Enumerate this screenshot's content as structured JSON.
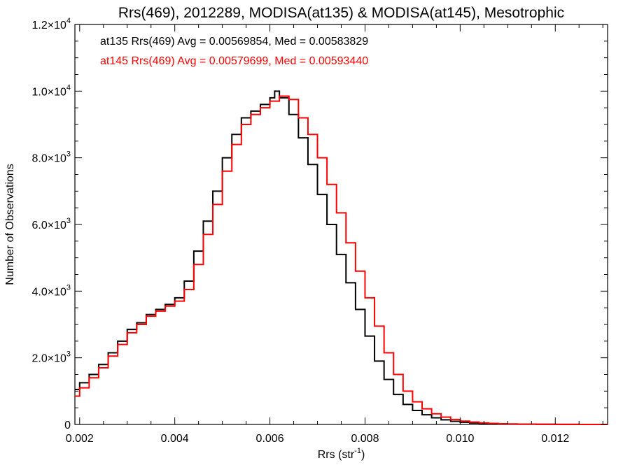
{
  "chart_data": {
    "type": "line",
    "style": "step-histogram",
    "title": "Rrs(469), 2012289, MODISA(at135) & MODISA(at145), Mesotrophic",
    "xlabel": "Rrs (str",
    "xlabel_superscript": "-1",
    "xlabel_suffix": ")",
    "ylabel": "Number of Observations",
    "xlim": [
      0.0019,
      0.0131
    ],
    "ylim": [
      0,
      12000
    ],
    "x_ticks": [
      {
        "value": 0.002,
        "label": "0.002"
      },
      {
        "value": 0.004,
        "label": "0.004"
      },
      {
        "value": 0.006,
        "label": "0.006"
      },
      {
        "value": 0.008,
        "label": "0.008"
      },
      {
        "value": 0.01,
        "label": "0.010"
      },
      {
        "value": 0.012,
        "label": "0.012"
      }
    ],
    "y_ticks": [
      {
        "value": 0,
        "mantissa": "0",
        "exponent": ""
      },
      {
        "value": 2000,
        "mantissa": "2.0×10",
        "exponent": "3"
      },
      {
        "value": 4000,
        "mantissa": "4.0×10",
        "exponent": "3"
      },
      {
        "value": 6000,
        "mantissa": "6.0×10",
        "exponent": "3"
      },
      {
        "value": 8000,
        "mantissa": "8.0×10",
        "exponent": "3"
      },
      {
        "value": 10000,
        "mantissa": "1.0×10",
        "exponent": "4"
      },
      {
        "value": 12000,
        "mantissa": "1.2×10",
        "exponent": "4"
      }
    ],
    "grid": false,
    "legend": {
      "placement": "top-left"
    },
    "annotations": [
      {
        "text": "at135 Rrs(469) Avg = 0.00569854, Med = 0.00583829",
        "color": "#000000"
      },
      {
        "text": "at145 Rrs(469) Avg = 0.00579699, Med = 0.00593440",
        "color": "#ff0000"
      }
    ],
    "series": [
      {
        "color": "#000000",
        "x": [
          0.0019,
          0.002,
          0.0022,
          0.0024,
          0.0026,
          0.0028,
          0.003,
          0.0032,
          0.0034,
          0.0036,
          0.0038,
          0.004,
          0.0042,
          0.0044,
          0.0046,
          0.0048,
          0.005,
          0.0052,
          0.0054,
          0.0056,
          0.0058,
          0.006,
          0.0061,
          0.0062,
          0.0064,
          0.0066,
          0.0068,
          0.007,
          0.0072,
          0.0074,
          0.0076,
          0.0078,
          0.008,
          0.0082,
          0.0084,
          0.0086,
          0.0088,
          0.009,
          0.0092,
          0.0094,
          0.0096,
          0.0098,
          0.01,
          0.0102,
          0.0104,
          0.0106,
          0.0108,
          0.011,
          0.0112,
          0.0116,
          0.012,
          0.0125,
          0.0131
        ],
        "values": [
          1050,
          1250,
          1500,
          1800,
          2150,
          2500,
          2850,
          3050,
          3300,
          3450,
          3600,
          3800,
          4300,
          5200,
          6100,
          7000,
          8000,
          8700,
          9200,
          9400,
          9600,
          9800,
          10000,
          9800,
          9300,
          8600,
          7800,
          6900,
          6000,
          5100,
          4250,
          3450,
          2650,
          1900,
          1350,
          900,
          600,
          420,
          290,
          200,
          140,
          95,
          65,
          45,
          30,
          20,
          14,
          10,
          7,
          4,
          2,
          1,
          0
        ]
      },
      {
        "color": "#ff0000",
        "x": [
          0.0019,
          0.002,
          0.0022,
          0.0024,
          0.0026,
          0.0028,
          0.003,
          0.0032,
          0.0034,
          0.0036,
          0.0038,
          0.004,
          0.0042,
          0.0044,
          0.0046,
          0.0048,
          0.005,
          0.0052,
          0.0054,
          0.0056,
          0.0058,
          0.006,
          0.0062,
          0.0064,
          0.0066,
          0.0068,
          0.007,
          0.0072,
          0.0074,
          0.0076,
          0.0078,
          0.008,
          0.0082,
          0.0084,
          0.0086,
          0.0088,
          0.009,
          0.0092,
          0.0094,
          0.0096,
          0.0098,
          0.01,
          0.0102,
          0.0104,
          0.0106,
          0.0108,
          0.011,
          0.0112,
          0.0116,
          0.012,
          0.0125,
          0.0131
        ],
        "values": [
          850,
          1100,
          1400,
          1700,
          2050,
          2400,
          2750,
          3000,
          3250,
          3400,
          3550,
          3700,
          4050,
          4800,
          5700,
          6600,
          7600,
          8400,
          9000,
          9300,
          9500,
          9700,
          9850,
          9750,
          9200,
          8700,
          8000,
          7200,
          6350,
          5450,
          4600,
          3800,
          2950,
          2150,
          1500,
          1000,
          680,
          470,
          320,
          220,
          150,
          100,
          70,
          48,
          32,
          22,
          15,
          10,
          6,
          3,
          1,
          0
        ]
      }
    ]
  }
}
